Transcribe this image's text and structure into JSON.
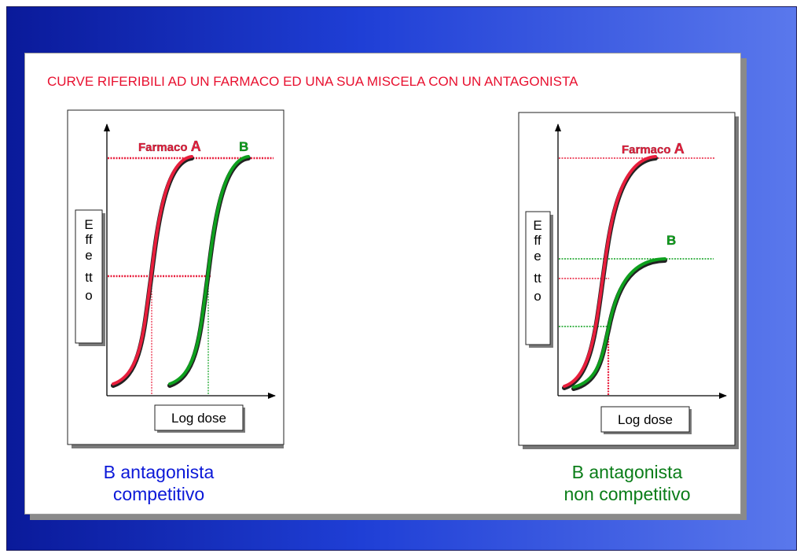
{
  "title": "CURVE RIFERIBILI AD UN FARMACO ED UNA SUA MISCELA CON UN ANTAGONISTA",
  "colors": {
    "drug_a": "#e81e3c",
    "antagonist_b": "#0ea01e",
    "title": "#e8102f",
    "left_caption": "#0b18d8",
    "right_caption": "#0a7d18"
  },
  "left_graph": {
    "y_label": [
      "E",
      "ff",
      "e",
      "tt",
      "o"
    ],
    "x_label": "Log dose",
    "label_a_text": "Farmaco ",
    "label_a_letter": "A",
    "label_b": "B",
    "caption_line1": "B antagonista",
    "caption_line2": "competitivo"
  },
  "right_graph": {
    "y_label": [
      "E",
      "ff",
      "e",
      "tt",
      "o"
    ],
    "x_label": "Log dose",
    "label_a_text": "Farmaco ",
    "label_a_letter": "A",
    "label_b": "B",
    "caption_line1": "B antagonista",
    "caption_line2": "non competitivo"
  }
}
